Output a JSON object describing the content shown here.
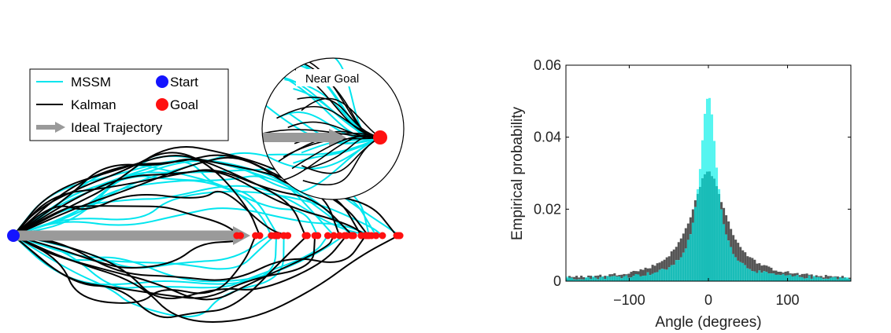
{
  "colors": {
    "mssm": "#00e5ee",
    "kalman": "#000000",
    "start": "#1414ff",
    "goal": "#ff1010",
    "ideal": "#9a9a9a",
    "hist_mssm": "#55f5f0",
    "hist_kalman": "#555555",
    "hist_overlap": "#19bdb8"
  },
  "legend": {
    "mssm": "MSSM",
    "kalman": "Kalman",
    "ideal": "Ideal Trajectory",
    "start": "Start",
    "goal": "Goal"
  },
  "inset": {
    "label": "Near Goal"
  },
  "chart_data": [
    {
      "type": "line",
      "panel": "trajectories",
      "series": [
        {
          "name": "MSSM",
          "color": "#00e5ee",
          "count": 18
        },
        {
          "name": "Kalman",
          "color": "#000000",
          "count": 18
        },
        {
          "name": "Ideal Trajectory",
          "color": "#9a9a9a"
        }
      ],
      "markers": [
        "Start",
        "Goal"
      ],
      "inset_title": "Near Goal"
    },
    {
      "type": "bar",
      "panel": "histogram",
      "xlabel": "Angle (degrees)",
      "ylabel": "Empirical probability",
      "xlim": [
        -180,
        180
      ],
      "ylim": [
        0,
        0.06
      ],
      "xticks": [
        -100,
        0,
        100
      ],
      "yticks": [
        0,
        0.02,
        0.04,
        0.06
      ],
      "ytick_labels": [
        "0",
        "0.02",
        "0.04",
        "0.06"
      ],
      "series": [
        {
          "name": "MSSM",
          "color": "#55f5f0",
          "distribution": "peaked",
          "peak_angle": 0,
          "peak_value": 0.051
        },
        {
          "name": "Kalman",
          "color": "#555555",
          "distribution": "broad",
          "peak_angle": 0,
          "peak_value": 0.03
        }
      ]
    }
  ]
}
